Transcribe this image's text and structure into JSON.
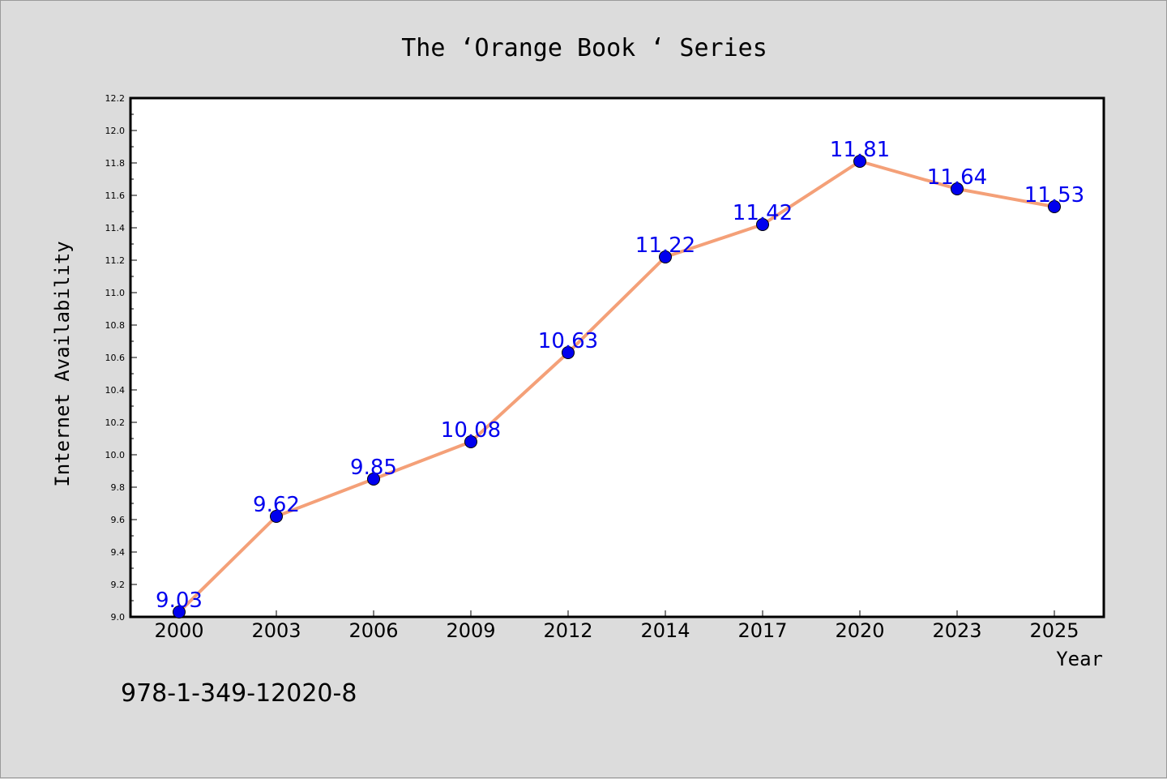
{
  "chart_data": {
    "type": "line",
    "title": "The  ‘Orange Book ‘ Series",
    "xlabel": "Year",
    "ylabel": "Internet Availability",
    "categories": [
      "2000",
      "2003",
      "2006",
      "2009",
      "2012",
      "2014",
      "2017",
      "2020",
      "2023",
      "2025"
    ],
    "series": [
      {
        "values": [
          9.03,
          9.62,
          9.85,
          10.08,
          10.63,
          11.22,
          11.42,
          11.81,
          11.64,
          11.53
        ],
        "line_color": "#f4a078",
        "marker_color": "#0000ee"
      }
    ],
    "data_labels": [
      "9.03",
      "9.62",
      "9.85",
      "10.08",
      "10.63",
      "11.22",
      "11.42",
      "11.81",
      "11.64",
      "11.53"
    ],
    "data_label_color": "#0000ee",
    "ylim": [
      9.0,
      12.2
    ],
    "yticks": [
      "9.0",
      "9.2",
      "9.4",
      "9.6",
      "9.8",
      "10.0",
      "10.2",
      "10.4",
      "10.6",
      "10.8",
      "11.0",
      "11.2",
      "11.4",
      "11.6",
      "11.8",
      "12.0",
      "12.2"
    ],
    "grid": false,
    "legend": "none"
  },
  "footer": {
    "isbn": "978-1-349-12020-8"
  }
}
